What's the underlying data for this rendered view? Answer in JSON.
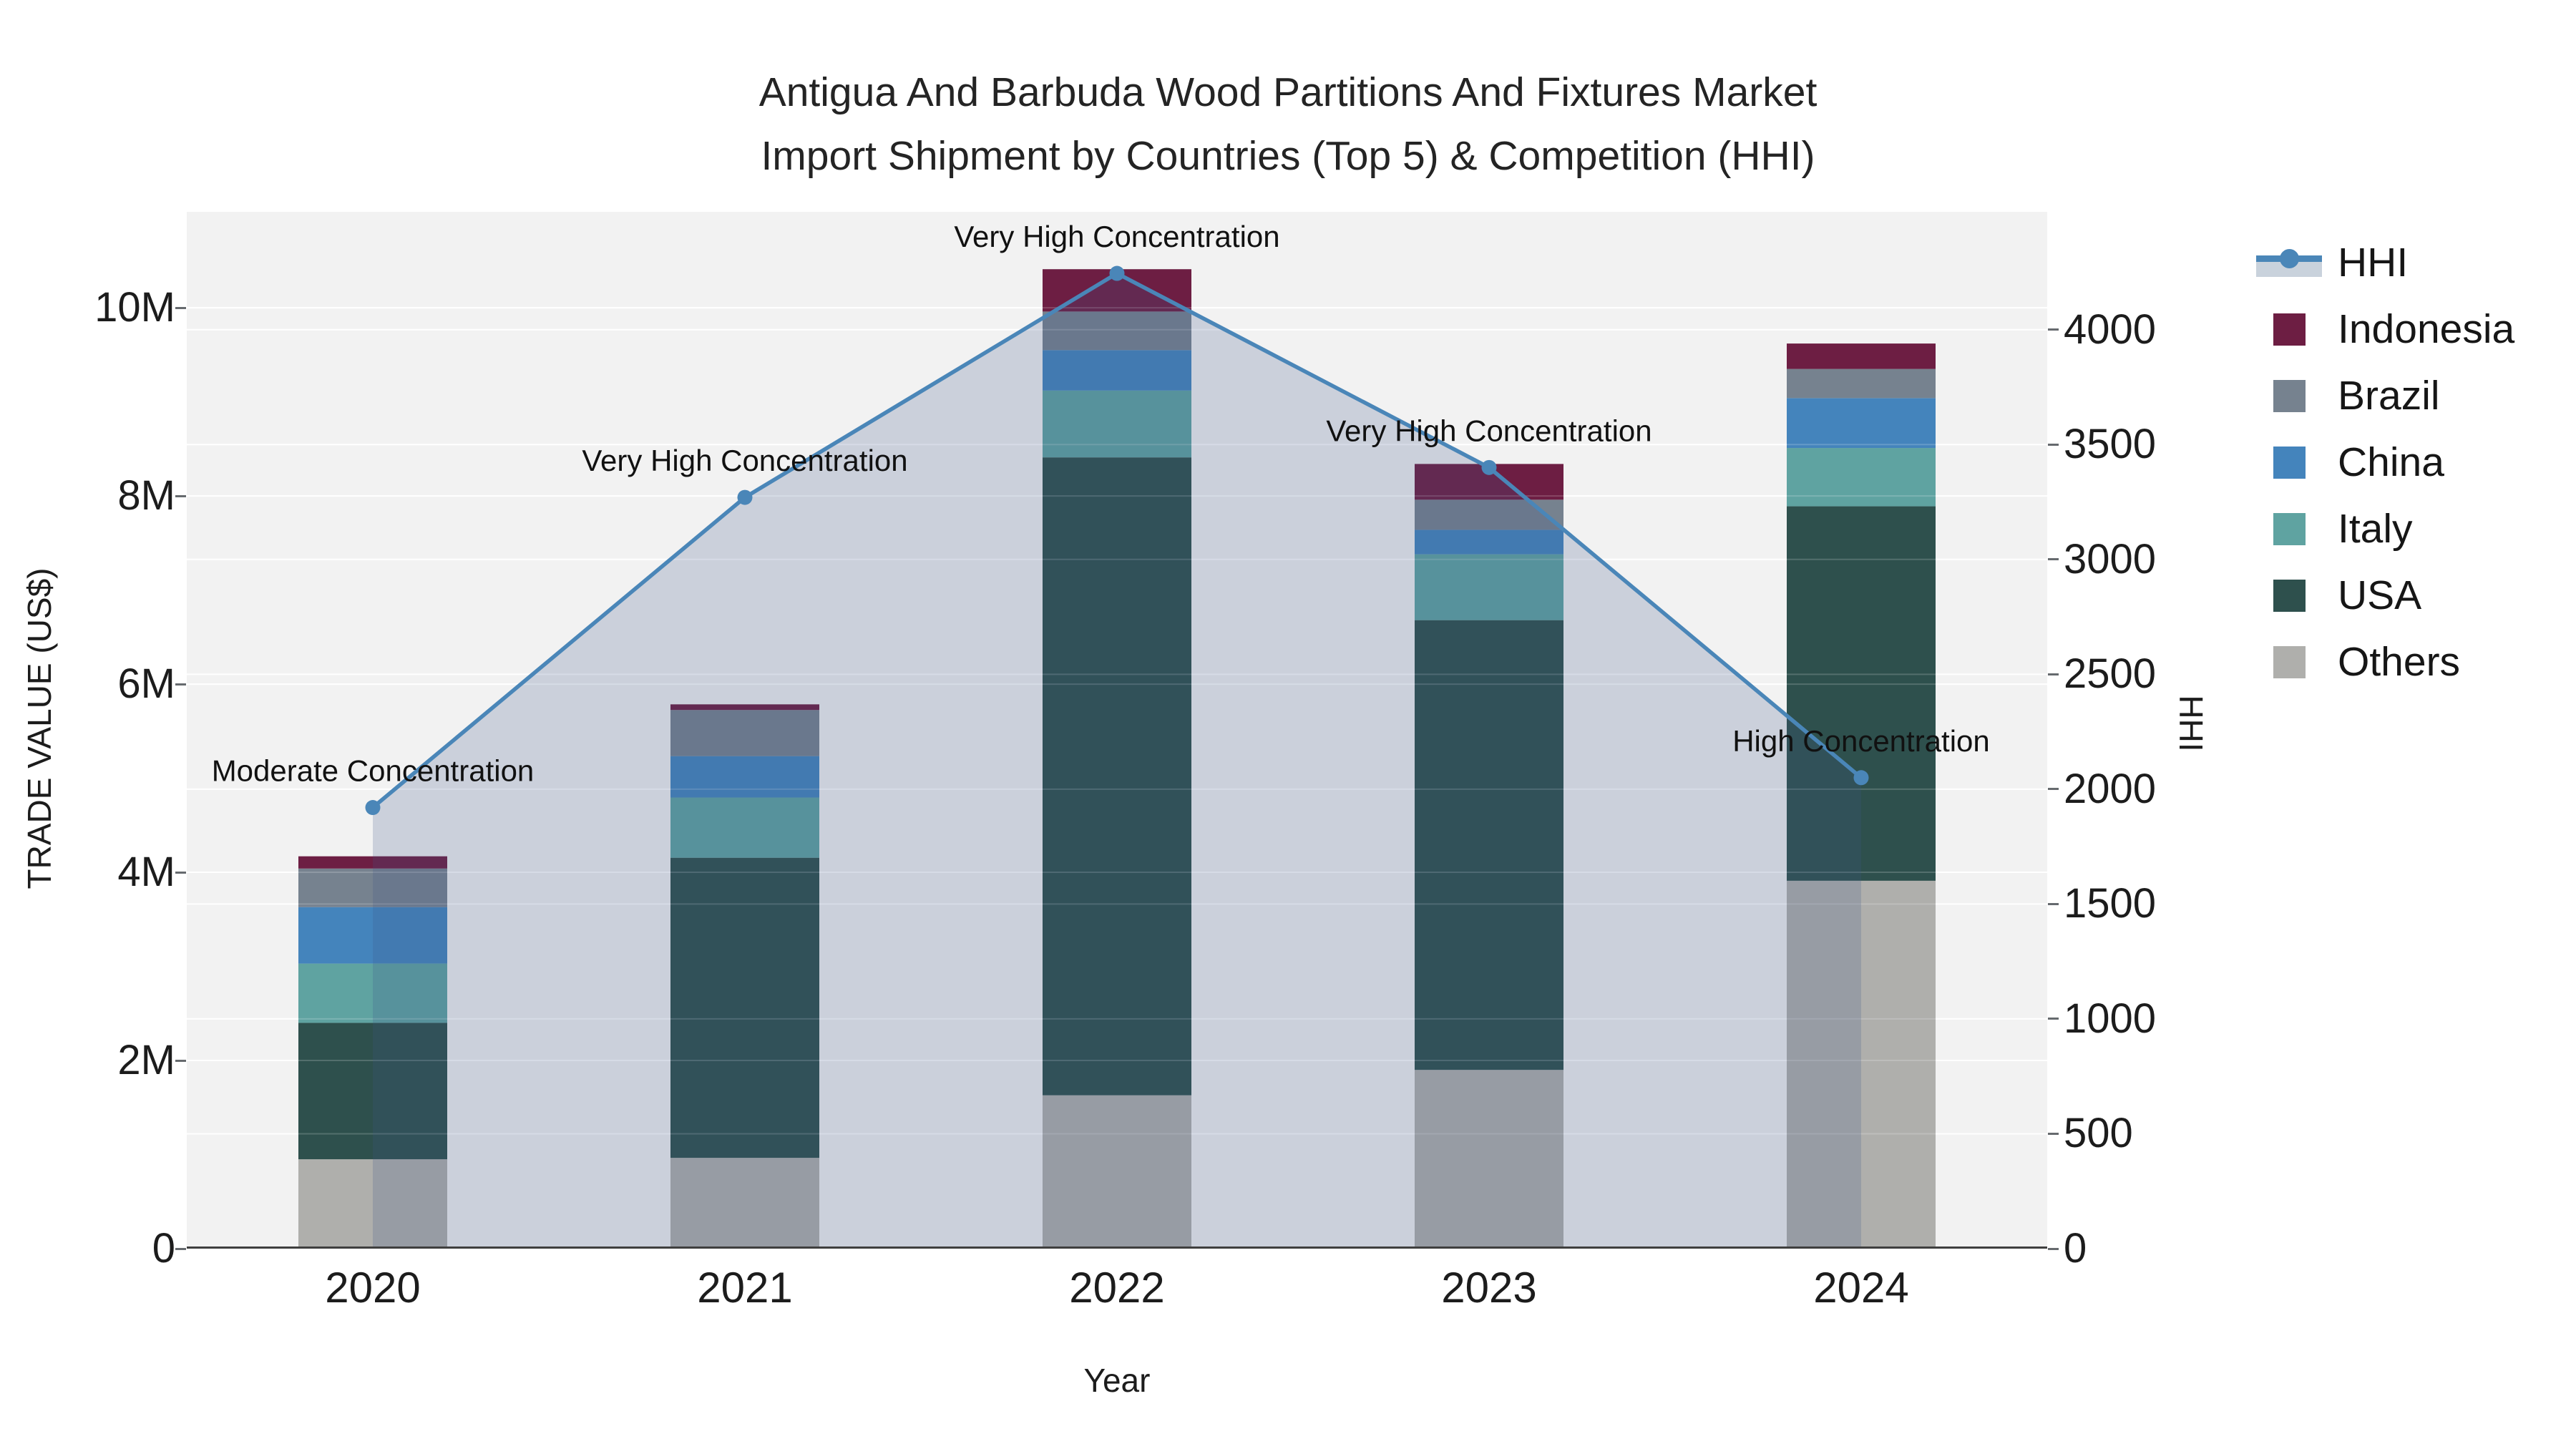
{
  "title": {
    "line1": "Antigua And Barbuda Wood Partitions And Fixtures Market",
    "line2": "Import Shipment by Countries (Top 5) & Competition (HHI)"
  },
  "legend": {
    "items": [
      {
        "label": "HHI",
        "type": "line",
        "color": "#4A86B8",
        "band": "#C9D2DC"
      },
      {
        "label": "Indonesia",
        "type": "swatch",
        "color": "#6D1E43"
      },
      {
        "label": "Brazil",
        "type": "swatch",
        "color": "#76828F"
      },
      {
        "label": "China",
        "type": "swatch",
        "color": "#4484BC"
      },
      {
        "label": "Italy",
        "type": "swatch",
        "color": "#5FA3A1"
      },
      {
        "label": "USA",
        "type": "swatch",
        "color": "#2E504D"
      },
      {
        "label": "Others",
        "type": "swatch",
        "color": "#AFAFAC"
      }
    ]
  },
  "chart_data": {
    "type": "bar+line",
    "title": "Antigua And Barbuda Wood Partitions And Fixtures Market Import Shipment by Countries (Top 5) & Competition (HHI)",
    "xlabel": "Year",
    "ylabel_left": "TRADE VALUE (US$)",
    "ylabel_right": "HHI",
    "categories": [
      "2020",
      "2021",
      "2022",
      "2023",
      "2024"
    ],
    "stack_order": "bottom_to_top",
    "series": [
      {
        "name": "Others",
        "color": "#AFAFAC",
        "values": [
          950000,
          965000,
          1630000,
          1900000,
          3910000
        ]
      },
      {
        "name": "USA",
        "color": "#2E504D",
        "values": [
          1450000,
          3190000,
          6780000,
          4780000,
          3980000
        ]
      },
      {
        "name": "Italy",
        "color": "#5FA3A1",
        "values": [
          630000,
          640000,
          710000,
          700000,
          620000
        ]
      },
      {
        "name": "China",
        "color": "#4484BC",
        "values": [
          600000,
          440000,
          430000,
          260000,
          530000
        ]
      },
      {
        "name": "Brazil",
        "color": "#76828F",
        "values": [
          410000,
          490000,
          410000,
          320000,
          310000
        ]
      },
      {
        "name": "Indonesia",
        "color": "#6D1E43",
        "values": [
          130000,
          60000,
          450000,
          380000,
          270000
        ]
      }
    ],
    "bar_totals": [
      4170000,
      5785000,
      10410000,
      8340000,
      9620000
    ],
    "line_series": {
      "name": "HHI",
      "axis": "right",
      "color": "#4A86B8",
      "area_fill": "rgba(60,85,135,0.21)",
      "values": [
        1920,
        3270,
        4245,
        3400,
        2050
      ]
    },
    "annotations": [
      {
        "x": "2020",
        "text": "Moderate Concentration"
      },
      {
        "x": "2021",
        "text": "Very High Concentration"
      },
      {
        "x": "2022",
        "text": "Very High Concentration"
      },
      {
        "x": "2023",
        "text": "Very High Concentration"
      },
      {
        "x": "2024",
        "text": "High Concentration"
      }
    ],
    "left_axis": {
      "ticks": [
        "0",
        "2M",
        "4M",
        "6M",
        "8M",
        "10M"
      ],
      "tick_values": [
        0,
        2000000,
        4000000,
        6000000,
        8000000,
        10000000
      ],
      "range": [
        0,
        11020000
      ],
      "grid": true
    },
    "right_axis": {
      "ticks": [
        "0",
        "500",
        "1000",
        "1500",
        "2000",
        "2500",
        "3000",
        "3500",
        "4000"
      ],
      "tick_values": [
        0,
        500,
        1000,
        1500,
        2000,
        2500,
        3000,
        3500,
        4000
      ],
      "range": [
        0,
        4513
      ],
      "grid": true
    },
    "colors": {
      "plot_bg": "#F2F2F2",
      "grid": "#FFFFFF",
      "axis_line": "#3F3F3F",
      "tick_text": "#1C1C1C",
      "annotation_text": "#111111"
    },
    "legend_position": "right"
  }
}
